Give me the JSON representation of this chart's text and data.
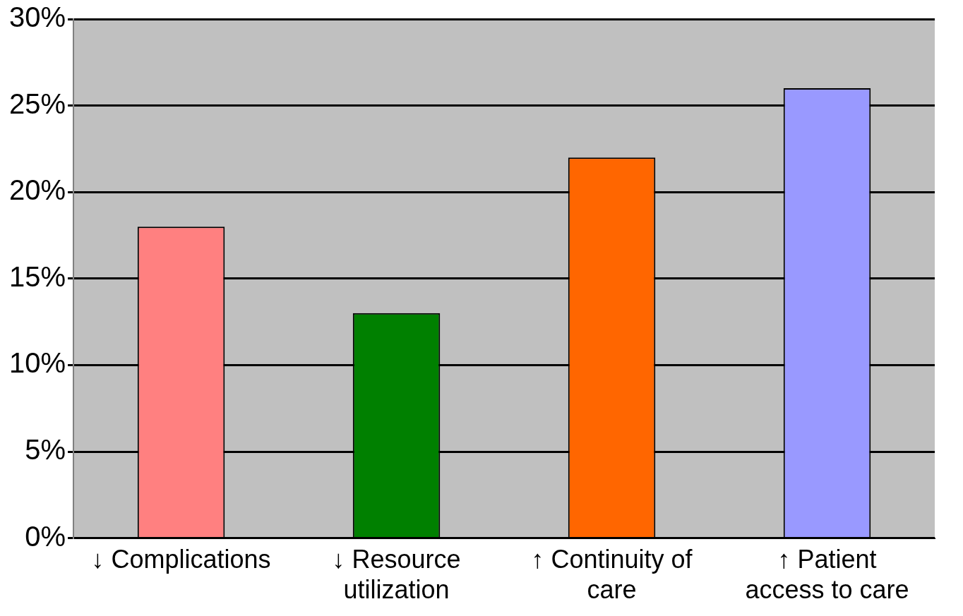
{
  "chart_data": {
    "type": "bar",
    "categories": [
      "↓ Complications",
      "↓ Resource utilization",
      "↑ Continuity of care",
      "↑ Patient access to care"
    ],
    "values": [
      18,
      13,
      22,
      26
    ],
    "colors": [
      "#ff8080",
      "#008000",
      "#ff6600",
      "#9999ff"
    ],
    "ylim": [
      0,
      30
    ],
    "yticks": [
      {
        "value": 0,
        "label": "0%"
      },
      {
        "value": 5,
        "label": "5%"
      },
      {
        "value": 10,
        "label": "10%"
      },
      {
        "value": 15,
        "label": "15%"
      },
      {
        "value": 20,
        "label": "20%"
      },
      {
        "value": 25,
        "label": "25%"
      },
      {
        "value": 30,
        "label": "30%"
      }
    ],
    "grid": "y",
    "legend": false
  }
}
